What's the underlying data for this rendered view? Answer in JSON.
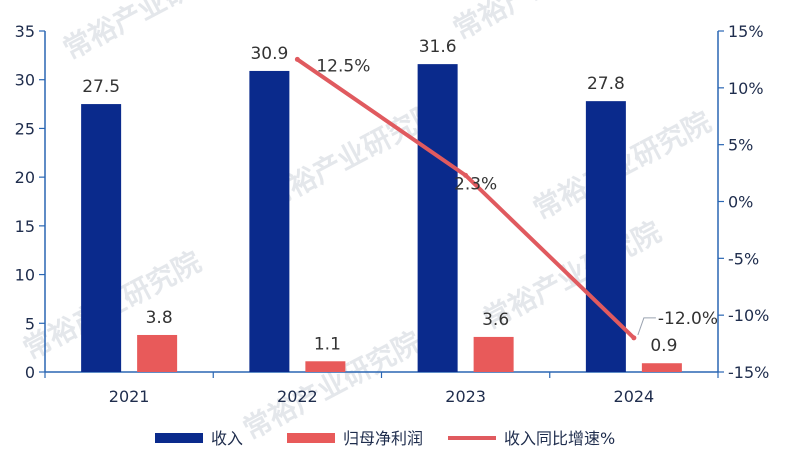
{
  "chart_data": {
    "type": "bar",
    "categories": [
      "2021",
      "2022",
      "2023",
      "2024"
    ],
    "series": [
      {
        "name": "收入",
        "kind": "bar",
        "axis": "left",
        "color": "#0a2a8c",
        "values": [
          27.5,
          30.9,
          31.6,
          27.8
        ],
        "labels": [
          "27.5",
          "30.9",
          "31.6",
          "27.8"
        ]
      },
      {
        "name": "归母净利润",
        "kind": "bar",
        "axis": "left",
        "color": "#e85a5a",
        "values": [
          3.8,
          1.1,
          3.6,
          0.9
        ],
        "labels": [
          "3.8",
          "1.1",
          "3.6",
          "0.9"
        ]
      },
      {
        "name": "收入同比增速%",
        "kind": "line",
        "axis": "right",
        "color": "#e05a5f",
        "values": [
          null,
          12.5,
          2.3,
          -12.0
        ],
        "labels": [
          "",
          "12.5%",
          "2.3%",
          "-12.0%"
        ]
      }
    ],
    "left_axis": {
      "min": 0,
      "max": 35,
      "ticks": [
        "0",
        "5",
        "10",
        "15",
        "20",
        "25",
        "30",
        "35"
      ]
    },
    "right_axis": {
      "min": -15,
      "max": 15,
      "ticks": [
        "-15%",
        "-10%",
        "-5%",
        "0%",
        "5%",
        "10%",
        "15%"
      ]
    },
    "legend_position": "bottom",
    "watermark": "常裕产业研究院"
  }
}
